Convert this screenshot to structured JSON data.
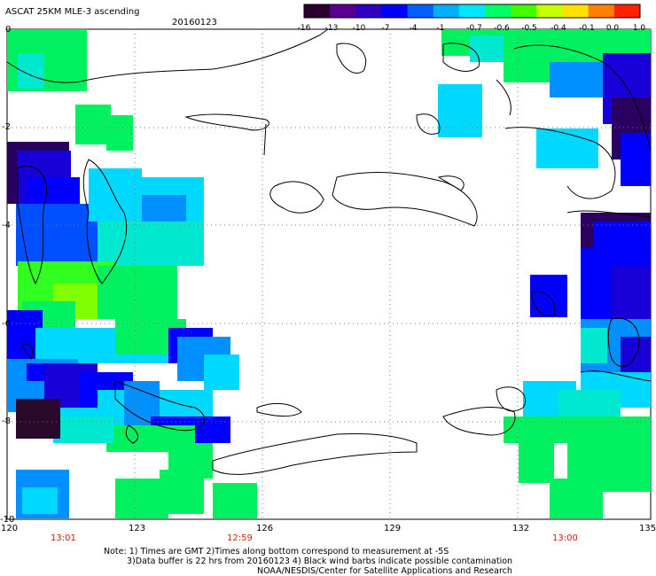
{
  "header": {
    "title": "ASCAT 25KM MLE-3 ascending",
    "date": "20160123"
  },
  "colorbar": {
    "labels": [
      "-16",
      "-13",
      "-10",
      "-7",
      "-4",
      "-1",
      "-0.7",
      "-0.6",
      "-0.5",
      "-0.4",
      "-0.1",
      "0.0",
      "1.0"
    ],
    "colors": [
      "#2a0030",
      "#5a0090",
      "#3000c0",
      "#0000ff",
      "#0060ff",
      "#00b0ff",
      "#00e6ff",
      "#00ff66",
      "#40ff00",
      "#c8ff00",
      "#ffe000",
      "#ff8000",
      "#ff2000"
    ]
  },
  "axes": {
    "y_labels": [
      "0",
      "-2",
      "-4",
      "-6",
      "-8",
      "-10"
    ],
    "x_labels": [
      "120",
      "123",
      "126",
      "129",
      "132",
      "135"
    ],
    "pass_times": [
      "13:01",
      "12:59",
      "13:00"
    ]
  },
  "notes": [
    "Note: 1) Times are GMT 2)Times along bottom correspond to measurement at -5S",
    "3)Data buffer is 22 hrs from 20160123 4) Black wind barbs indicate possible contamination",
    "NOAA/NESDIS/Center for Satellite Applications and Research"
  ]
}
